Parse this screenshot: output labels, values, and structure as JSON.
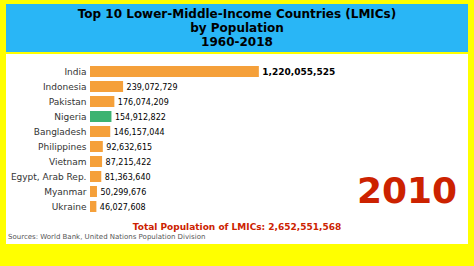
{
  "chart_data": {
    "type": "bar",
    "orientation": "horizontal",
    "title": "Top 10 Lower-Middle-Income Countries (LMICs) by Population",
    "subtitle": "1960-2018",
    "categories": [
      "India",
      "Indonesia",
      "Pakistan",
      "Nigeria",
      "Bangladesh",
      "Philippines",
      "Vietnam",
      "Egypt, Arab Rep.",
      "Myanmar",
      "Ukraine"
    ],
    "values": [
      1220055525,
      239072729,
      176074209,
      154912822,
      146157044,
      92632615,
      87215422,
      81363640,
      50299676,
      46027608
    ],
    "value_labels": [
      "1,220,055,525",
      "239,072,729",
      "176,074,209",
      "154,912,822",
      "146,157,044",
      "92,632,615",
      "87,215,422",
      "81,363,640",
      "50,299,676",
      "46,027,608"
    ],
    "colors": [
      "#F5A03A",
      "#F5A03A",
      "#F5A03A",
      "#3CB371",
      "#F5A03A",
      "#F5A03A",
      "#F5A03A",
      "#F5A03A",
      "#F5A03A",
      "#F5A03A"
    ],
    "xlim": [
      0,
      1488467740.5
    ],
    "data_labels": true,
    "tick_labels": "y",
    "grid": false,
    "annotations": [
      {
        "text": "2010",
        "color": "#CC2200"
      },
      {
        "text": "Total Population of LMICs: 2,652,551,568",
        "color": "#CC2200"
      },
      {
        "text": "Sources: World Bank, United Nations Population Division",
        "color": "#555555"
      }
    ]
  }
}
